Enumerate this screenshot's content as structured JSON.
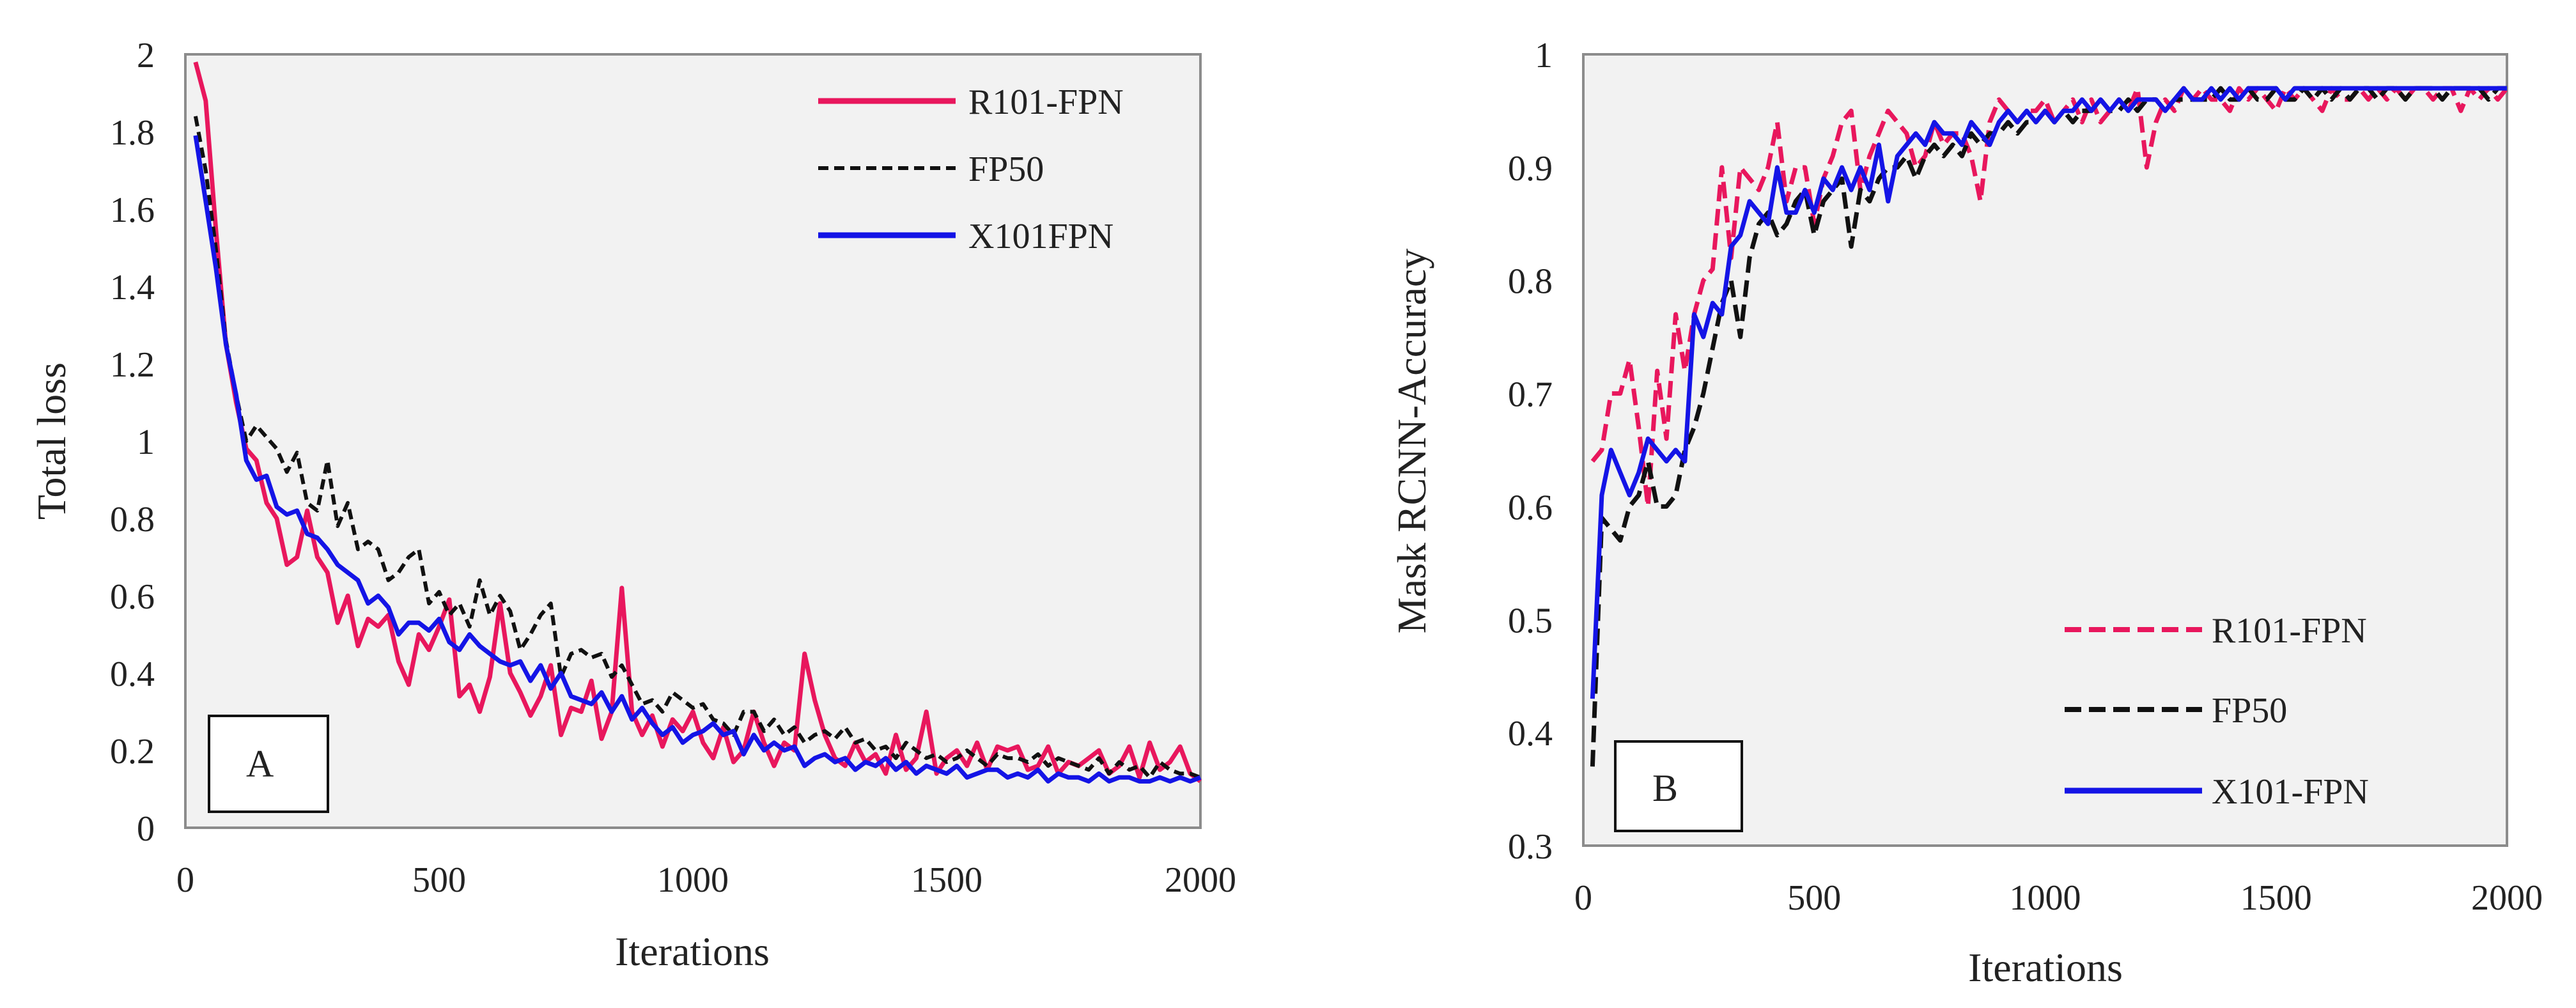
{
  "chart_data": [
    {
      "type": "line",
      "panel_label": "A",
      "xlabel": "Iterations",
      "ylabel": "Total loss",
      "xlim": [
        0,
        2000
      ],
      "ylim": [
        0,
        2
      ],
      "xticks": [
        0,
        500,
        1000,
        1500,
        2000
      ],
      "yticks": [
        0,
        0.2,
        0.4,
        0.6,
        0.8,
        1,
        1.2,
        1.4,
        1.6,
        1.8,
        2
      ],
      "xtick_labels": [
        "0",
        "500",
        "1000",
        "1500",
        "2000"
      ],
      "ytick_labels": [
        "0",
        "0.2",
        "0.4",
        "0.6",
        "0.8",
        "1",
        "1.2",
        "1.4",
        "1.6",
        "1.8",
        "2"
      ],
      "grid": false,
      "background": "#f2f2f2",
      "legend_position": "top-right",
      "x": [
        20,
        40,
        60,
        80,
        100,
        120,
        140,
        160,
        180,
        200,
        220,
        240,
        260,
        280,
        300,
        320,
        340,
        360,
        380,
        400,
        420,
        440,
        460,
        480,
        500,
        520,
        540,
        560,
        580,
        600,
        620,
        640,
        660,
        680,
        700,
        720,
        740,
        760,
        780,
        800,
        820,
        840,
        860,
        880,
        900,
        920,
        940,
        960,
        980,
        1000,
        1020,
        1040,
        1060,
        1080,
        1100,
        1120,
        1140,
        1160,
        1180,
        1200,
        1220,
        1240,
        1260,
        1280,
        1300,
        1320,
        1340,
        1360,
        1380,
        1400,
        1420,
        1440,
        1460,
        1480,
        1500,
        1520,
        1540,
        1560,
        1580,
        1600,
        1620,
        1640,
        1660,
        1680,
        1700,
        1720,
        1740,
        1760,
        1780,
        1800,
        1820,
        1840,
        1860,
        1880,
        1900,
        1920,
        1940,
        1960,
        1980,
        2000
      ],
      "series": [
        {
          "name": "R101-FPN",
          "color": "#e8175d",
          "dash": "solid",
          "values": [
            1.98,
            1.88,
            1.55,
            1.25,
            1.1,
            0.98,
            0.95,
            0.84,
            0.8,
            0.68,
            0.7,
            0.82,
            0.7,
            0.66,
            0.53,
            0.6,
            0.47,
            0.54,
            0.52,
            0.55,
            0.43,
            0.37,
            0.5,
            0.46,
            0.52,
            0.59,
            0.34,
            0.37,
            0.3,
            0.39,
            0.58,
            0.4,
            0.35,
            0.29,
            0.34,
            0.42,
            0.24,
            0.31,
            0.3,
            0.38,
            0.23,
            0.3,
            0.62,
            0.3,
            0.24,
            0.29,
            0.21,
            0.28,
            0.25,
            0.3,
            0.22,
            0.18,
            0.26,
            0.17,
            0.2,
            0.3,
            0.22,
            0.16,
            0.22,
            0.2,
            0.45,
            0.33,
            0.24,
            0.18,
            0.16,
            0.22,
            0.17,
            0.19,
            0.14,
            0.24,
            0.15,
            0.18,
            0.3,
            0.14,
            0.18,
            0.2,
            0.16,
            0.22,
            0.15,
            0.21,
            0.2,
            0.21,
            0.15,
            0.16,
            0.21,
            0.14,
            0.17,
            0.16,
            0.18,
            0.2,
            0.14,
            0.16,
            0.21,
            0.13,
            0.22,
            0.15,
            0.17,
            0.21,
            0.14,
            0.12
          ]
        },
        {
          "name": "FP50",
          "color": "#111111",
          "dash": "dashed",
          "values": [
            1.84,
            1.7,
            1.5,
            1.26,
            1.12,
            1.0,
            1.04,
            1.01,
            0.98,
            0.92,
            0.97,
            0.84,
            0.82,
            0.95,
            0.78,
            0.84,
            0.72,
            0.74,
            0.72,
            0.64,
            0.66,
            0.7,
            0.72,
            0.58,
            0.61,
            0.55,
            0.58,
            0.52,
            0.64,
            0.55,
            0.6,
            0.56,
            0.46,
            0.5,
            0.55,
            0.58,
            0.39,
            0.45,
            0.46,
            0.44,
            0.45,
            0.39,
            0.42,
            0.37,
            0.32,
            0.33,
            0.3,
            0.35,
            0.33,
            0.31,
            0.32,
            0.28,
            0.27,
            0.24,
            0.3,
            0.3,
            0.25,
            0.28,
            0.24,
            0.26,
            0.22,
            0.24,
            0.25,
            0.23,
            0.26,
            0.22,
            0.23,
            0.2,
            0.21,
            0.18,
            0.22,
            0.2,
            0.18,
            0.19,
            0.17,
            0.18,
            0.2,
            0.18,
            0.16,
            0.19,
            0.18,
            0.18,
            0.17,
            0.19,
            0.16,
            0.18,
            0.17,
            0.16,
            0.15,
            0.18,
            0.14,
            0.17,
            0.15,
            0.16,
            0.13,
            0.17,
            0.15,
            0.14,
            0.14,
            0.13
          ]
        },
        {
          "name": "X101FPN",
          "color": "#1414e6",
          "dash": "solid",
          "values": [
            1.79,
            1.62,
            1.45,
            1.25,
            1.12,
            0.95,
            0.9,
            0.91,
            0.83,
            0.81,
            0.82,
            0.76,
            0.75,
            0.72,
            0.68,
            0.66,
            0.64,
            0.58,
            0.6,
            0.57,
            0.5,
            0.53,
            0.53,
            0.51,
            0.54,
            0.48,
            0.46,
            0.5,
            0.47,
            0.45,
            0.43,
            0.42,
            0.43,
            0.38,
            0.42,
            0.36,
            0.4,
            0.34,
            0.33,
            0.32,
            0.35,
            0.3,
            0.34,
            0.28,
            0.31,
            0.27,
            0.24,
            0.26,
            0.22,
            0.24,
            0.25,
            0.27,
            0.24,
            0.25,
            0.19,
            0.24,
            0.2,
            0.22,
            0.2,
            0.21,
            0.16,
            0.18,
            0.19,
            0.17,
            0.18,
            0.15,
            0.17,
            0.16,
            0.18,
            0.15,
            0.17,
            0.14,
            0.16,
            0.15,
            0.14,
            0.16,
            0.13,
            0.14,
            0.15,
            0.15,
            0.13,
            0.14,
            0.13,
            0.15,
            0.12,
            0.14,
            0.13,
            0.13,
            0.12,
            0.14,
            0.12,
            0.13,
            0.13,
            0.12,
            0.12,
            0.13,
            0.12,
            0.13,
            0.12,
            0.13
          ]
        }
      ]
    },
    {
      "type": "line",
      "panel_label": "B",
      "xlabel": "Iterations",
      "ylabel": "Mask RCNN-Accuracy",
      "xlim": [
        0,
        2000
      ],
      "ylim": [
        0.3,
        1
      ],
      "xticks": [
        0,
        500,
        1000,
        1500,
        2000
      ],
      "yticks": [
        0.3,
        0.4,
        0.5,
        0.6,
        0.7,
        0.8,
        0.9,
        1
      ],
      "xtick_labels": [
        "0",
        "500",
        "1000",
        "1500",
        "2000"
      ],
      "ytick_labels": [
        "0.3",
        "0.4",
        "0.5",
        "0.6",
        "0.7",
        "0.8",
        "0.9",
        "1"
      ],
      "grid": false,
      "background": "#f2f2f2",
      "legend_position": "bottom-right",
      "x": [
        20,
        40,
        60,
        80,
        100,
        120,
        140,
        160,
        180,
        200,
        220,
        240,
        260,
        280,
        300,
        320,
        340,
        360,
        380,
        400,
        420,
        440,
        460,
        480,
        500,
        520,
        540,
        560,
        580,
        600,
        620,
        640,
        660,
        680,
        700,
        720,
        740,
        760,
        780,
        800,
        820,
        840,
        860,
        880,
        900,
        920,
        940,
        960,
        980,
        1000,
        1020,
        1040,
        1060,
        1080,
        1100,
        1120,
        1140,
        1160,
        1180,
        1200,
        1220,
        1240,
        1260,
        1280,
        1300,
        1320,
        1340,
        1360,
        1380,
        1400,
        1420,
        1440,
        1460,
        1480,
        1500,
        1520,
        1540,
        1560,
        1580,
        1600,
        1620,
        1640,
        1660,
        1680,
        1700,
        1720,
        1740,
        1760,
        1780,
        1800,
        1820,
        1840,
        1860,
        1880,
        1900,
        1920,
        1940,
        1960,
        1980,
        2000
      ],
      "series": [
        {
          "name": "R101-FPN",
          "color": "#e8175d",
          "dash": "dashed",
          "values": [
            0.64,
            0.65,
            0.7,
            0.7,
            0.73,
            0.67,
            0.6,
            0.72,
            0.66,
            0.77,
            0.72,
            0.77,
            0.8,
            0.81,
            0.9,
            0.82,
            0.9,
            0.89,
            0.88,
            0.9,
            0.94,
            0.87,
            0.9,
            0.9,
            0.85,
            0.89,
            0.91,
            0.94,
            0.95,
            0.88,
            0.91,
            0.93,
            0.95,
            0.94,
            0.93,
            0.9,
            0.91,
            0.94,
            0.92,
            0.93,
            0.93,
            0.91,
            0.87,
            0.94,
            0.96,
            0.95,
            0.94,
            0.95,
            0.95,
            0.96,
            0.94,
            0.95,
            0.96,
            0.94,
            0.96,
            0.94,
            0.95,
            0.96,
            0.95,
            0.97,
            0.9,
            0.94,
            0.96,
            0.95,
            0.97,
            0.96,
            0.97,
            0.96,
            0.96,
            0.95,
            0.97,
            0.96,
            0.97,
            0.96,
            0.95,
            0.97,
            0.96,
            0.97,
            0.96,
            0.95,
            0.97,
            0.96,
            0.96,
            0.97,
            0.96,
            0.97,
            0.96,
            0.97,
            0.96,
            0.97,
            0.97,
            0.96,
            0.97,
            0.97,
            0.95,
            0.97,
            0.96,
            0.97,
            0.96,
            0.97
          ]
        },
        {
          "name": "FP50",
          "color": "#111111",
          "dash": "dashed",
          "values": [
            0.37,
            0.59,
            0.58,
            0.57,
            0.6,
            0.61,
            0.64,
            0.6,
            0.6,
            0.61,
            0.65,
            0.67,
            0.7,
            0.74,
            0.78,
            0.8,
            0.75,
            0.82,
            0.85,
            0.86,
            0.84,
            0.85,
            0.87,
            0.88,
            0.84,
            0.87,
            0.88,
            0.89,
            0.83,
            0.88,
            0.87,
            0.89,
            0.9,
            0.9,
            0.91,
            0.89,
            0.91,
            0.92,
            0.91,
            0.92,
            0.91,
            0.93,
            0.92,
            0.93,
            0.93,
            0.94,
            0.93,
            0.94,
            0.94,
            0.95,
            0.94,
            0.95,
            0.94,
            0.95,
            0.95,
            0.96,
            0.95,
            0.95,
            0.96,
            0.95,
            0.96,
            0.96,
            0.95,
            0.96,
            0.96,
            0.96,
            0.96,
            0.96,
            0.97,
            0.96,
            0.96,
            0.97,
            0.96,
            0.96,
            0.97,
            0.96,
            0.96,
            0.97,
            0.96,
            0.97,
            0.96,
            0.97,
            0.96,
            0.97,
            0.97,
            0.96,
            0.97,
            0.97,
            0.96,
            0.97,
            0.97,
            0.97,
            0.96,
            0.97,
            0.97,
            0.97,
            0.97,
            0.96,
            0.97,
            0.97
          ]
        },
        {
          "name": "X101-FPN",
          "color": "#1414e6",
          "dash": "solid",
          "values": [
            0.43,
            0.61,
            0.65,
            0.63,
            0.61,
            0.63,
            0.66,
            0.65,
            0.64,
            0.65,
            0.64,
            0.77,
            0.75,
            0.78,
            0.77,
            0.83,
            0.84,
            0.87,
            0.86,
            0.85,
            0.9,
            0.86,
            0.86,
            0.88,
            0.86,
            0.89,
            0.88,
            0.9,
            0.88,
            0.9,
            0.88,
            0.92,
            0.87,
            0.91,
            0.92,
            0.93,
            0.92,
            0.94,
            0.93,
            0.93,
            0.92,
            0.94,
            0.93,
            0.92,
            0.94,
            0.95,
            0.94,
            0.95,
            0.94,
            0.95,
            0.94,
            0.95,
            0.95,
            0.96,
            0.95,
            0.96,
            0.95,
            0.96,
            0.95,
            0.96,
            0.96,
            0.96,
            0.95,
            0.96,
            0.97,
            0.96,
            0.96,
            0.97,
            0.96,
            0.97,
            0.96,
            0.97,
            0.97,
            0.97,
            0.97,
            0.96,
            0.97,
            0.97,
            0.97,
            0.97,
            0.97,
            0.97,
            0.97,
            0.97,
            0.97,
            0.97,
            0.97,
            0.97,
            0.97,
            0.97,
            0.97,
            0.97,
            0.97,
            0.97,
            0.97,
            0.97,
            0.97,
            0.97,
            0.97,
            0.97
          ]
        }
      ]
    }
  ]
}
